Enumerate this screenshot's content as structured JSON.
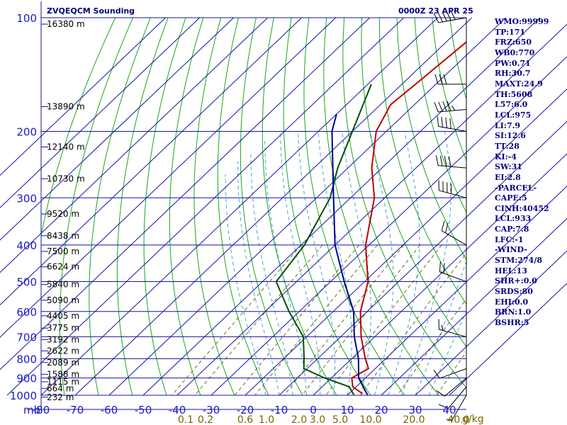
{
  "header": {
    "station": "ZVQEQCM Sounding",
    "time": "0000Z 23 APR 25"
  },
  "chart_data": {
    "type": "skew-t",
    "pressure_axis": {
      "unit_label": "mb",
      "ticks": [
        100,
        200,
        300,
        400,
        500,
        600,
        700,
        800,
        900,
        1000
      ],
      "range": [
        100,
        1000
      ],
      "scale": "log"
    },
    "temperature_axis": {
      "ticks": [
        -80,
        -70,
        -60,
        -50,
        -40,
        -30,
        -20,
        -10,
        0,
        10,
        20,
        30,
        40
      ],
      "range": [
        -80,
        45
      ]
    },
    "height_labels": [
      {
        "p": 104,
        "label": "16380 m"
      },
      {
        "p": 172,
        "label": "13890 m"
      },
      {
        "p": 220,
        "label": "12140 m"
      },
      {
        "p": 267,
        "label": "10730 m"
      },
      {
        "p": 331,
        "label": "9520 m"
      },
      {
        "p": 378,
        "label": "8438 m"
      },
      {
        "p": 416,
        "label": "7500 m"
      },
      {
        "p": 457,
        "label": "6624 m"
      },
      {
        "p": 509,
        "label": "5840 m"
      },
      {
        "p": 560,
        "label": "5090 m"
      },
      {
        "p": 616,
        "label": "4405 m"
      },
      {
        "p": 664,
        "label": "3775 m"
      },
      {
        "p": 712,
        "label": "3192 m"
      },
      {
        "p": 763,
        "label": "2622 m"
      },
      {
        "p": 819,
        "label": "2089 m"
      },
      {
        "p": 880,
        "label": "1588 m"
      },
      {
        "p": 921,
        "label": "1115 m"
      },
      {
        "p": 959,
        "label": "664 m"
      },
      {
        "p": 1012,
        "label": "232 m"
      }
    ],
    "mixing_ratio": {
      "unit_label": "g/kg",
      "labels": [
        {
          "value": 0.1,
          "text": "0.1"
        },
        {
          "value": 0.2,
          "text": "0.2"
        },
        {
          "value": 0.6,
          "text": "0.6"
        },
        {
          "value": 1.0,
          "text": "1.0"
        },
        {
          "value": 2.0,
          "text": "2.0"
        },
        {
          "value": 3.0,
          "text": "3.0"
        },
        {
          "value": 5.0,
          "text": "5.0"
        },
        {
          "value": 10.0,
          "text": "10.0"
        },
        {
          "value": 20.0,
          "text": "20.0"
        },
        {
          "value": 40.0,
          "text": "40.0"
        }
      ]
    },
    "series": [
      {
        "name": "temperature",
        "color": "#c00000",
        "points": [
          [
            100,
            -63
          ],
          [
            150,
            -66
          ],
          [
            170,
            -67
          ],
          [
            200,
            -63
          ],
          [
            250,
            -53
          ],
          [
            300,
            -43
          ],
          [
            400,
            -31
          ],
          [
            500,
            -19
          ],
          [
            600,
            -12
          ],
          [
            700,
            -4
          ],
          [
            800,
            4
          ],
          [
            850,
            8
          ],
          [
            900,
            6
          ],
          [
            950,
            9
          ],
          [
            990,
            14
          ]
        ]
      },
      {
        "name": "dewpoint",
        "color": "#005000",
        "points": [
          [
            150,
            -79
          ],
          [
            200,
            -70
          ],
          [
            250,
            -63
          ],
          [
            300,
            -56
          ],
          [
            400,
            -49
          ],
          [
            500,
            -46
          ],
          [
            600,
            -33
          ],
          [
            700,
            -21
          ],
          [
            800,
            -14
          ],
          [
            850,
            -11
          ],
          [
            900,
            -2
          ],
          [
            950,
            8
          ],
          [
            1000,
            12
          ]
        ]
      },
      {
        "name": "parcel",
        "color": "#000090",
        "points": [
          [
            180,
            -80
          ],
          [
            200,
            -76
          ],
          [
            300,
            -55
          ],
          [
            400,
            -40
          ],
          [
            500,
            -26
          ],
          [
            600,
            -14
          ],
          [
            700,
            -6
          ],
          [
            800,
            2
          ],
          [
            900,
            8
          ],
          [
            1000,
            16
          ]
        ]
      }
    ],
    "wind_barbs": [
      {
        "p": 100,
        "dir": 260,
        "kt": 50
      },
      {
        "p": 150,
        "dir": 270,
        "kt": 30
      },
      {
        "p": 175,
        "dir": 265,
        "kt": 45
      },
      {
        "p": 200,
        "dir": 280,
        "kt": 40
      },
      {
        "p": 250,
        "dir": 275,
        "kt": 40
      },
      {
        "p": 300,
        "dir": 285,
        "kt": 40
      },
      {
        "p": 400,
        "dir": 300,
        "kt": 20
      },
      {
        "p": 500,
        "dir": 290,
        "kt": 20
      },
      {
        "p": 700,
        "dir": 285,
        "kt": 15
      },
      {
        "p": 850,
        "dir": 250,
        "kt": 10
      },
      {
        "p": 900,
        "dir": 230,
        "kt": 10
      },
      {
        "p": 950,
        "dir": 220,
        "kt": 10
      },
      {
        "p": 1000,
        "dir": 210,
        "kt": 5
      }
    ]
  },
  "indices": [
    "WMO:99999",
    "TP:171",
    "FRZ:650",
    "WB0:770",
    "PW:0.71",
    "RH:30.7",
    "MAXT:24.9",
    "TH:5608",
    "L57:6.0",
    "LCL:975",
    "LI:7.9",
    "SI:12.6",
    "TT:28",
    "KI:-4",
    "SW:31",
    "EI:2.8",
    "-PARCEL-",
    "CAPE:5",
    "CINH:40452",
    "LCL:933",
    "CAP:7.8",
    "LFC:-1",
    "-WIND-",
    "STM:274/8",
    "HEL:13",
    "SHR+:0.0",
    "SRDS:80",
    "EHI:0.0",
    "BRN:1.0",
    "BSHR:5"
  ]
}
